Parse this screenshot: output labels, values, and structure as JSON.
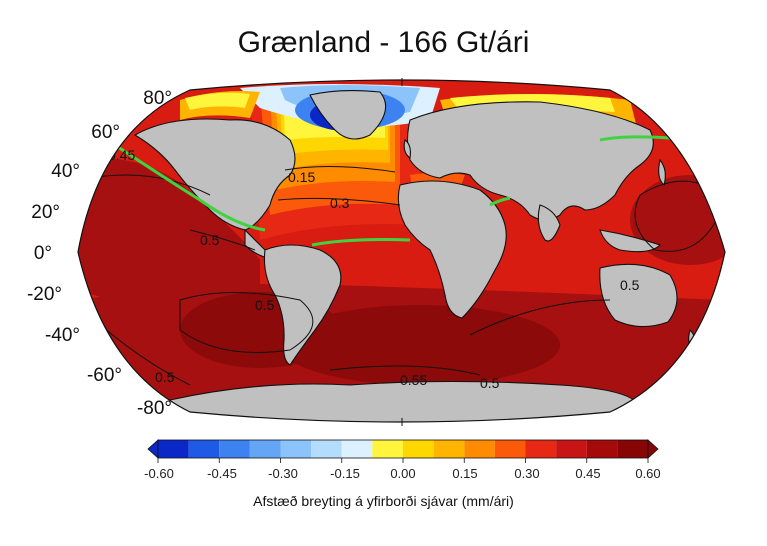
{
  "title": "Grænland - 166 Gt/ári",
  "latitude_labels": [
    "80°",
    "60°",
    "40°",
    "20°",
    "0°",
    "-20°",
    "-40°",
    "-60°",
    "-80°"
  ],
  "contour_labels": [
    "0.15",
    "0.3",
    "0.5",
    "0.5",
    "0.55",
    "0.5",
    "0.45",
    "0.5",
    "0.5"
  ],
  "colorbar": {
    "ticks": [
      "-0.60",
      "-0.45",
      "-0.30",
      "-0.15",
      "0.00",
      "0.15",
      "0.30",
      "0.45",
      "0.60"
    ],
    "colors": [
      "#0a28c8",
      "#1e5ae6",
      "#3c82f0",
      "#64a5f5",
      "#8cc3fa",
      "#b4dcfc",
      "#dcf0fe",
      "#fff53c",
      "#ffd700",
      "#ffb400",
      "#ff8c00",
      "#fa5a0a",
      "#e62814",
      "#c81414",
      "#a50a0a",
      "#870505"
    ],
    "label": "Afstæð breyting á yfirborði sjávar (mm/ári)"
  },
  "colors": {
    "ocean_dark": "#a61010",
    "ocean_mid": "#d81c12",
    "land": "#c0c0c0",
    "zero_contour": "#3fd43f"
  }
}
